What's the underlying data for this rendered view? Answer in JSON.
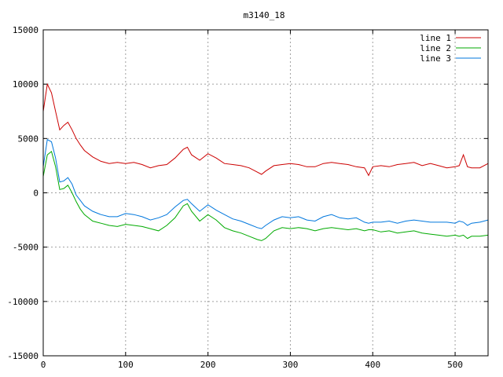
{
  "chart_data": {
    "type": "line",
    "title": "m3140_18",
    "xlabel": "",
    "ylabel": "",
    "xlim": [
      0,
      540
    ],
    "ylim": [
      -15000,
      15000
    ],
    "xticks": [
      0,
      100,
      200,
      300,
      400,
      500
    ],
    "yticks": [
      -15000,
      -10000,
      -5000,
      0,
      5000,
      10000,
      15000
    ],
    "grid": true,
    "legend_position": "top-right",
    "x": [
      0,
      5,
      10,
      15,
      20,
      25,
      30,
      35,
      40,
      45,
      50,
      60,
      70,
      80,
      90,
      100,
      110,
      120,
      130,
      140,
      150,
      160,
      170,
      175,
      180,
      190,
      200,
      210,
      220,
      230,
      240,
      250,
      260,
      265,
      270,
      280,
      290,
      300,
      310,
      320,
      330,
      340,
      350,
      360,
      370,
      380,
      390,
      395,
      400,
      410,
      420,
      430,
      440,
      450,
      460,
      470,
      480,
      490,
      500,
      505,
      510,
      515,
      520,
      530,
      540
    ],
    "series": [
      {
        "name": "line 1",
        "color": "#cc0000",
        "values": [
          7500,
          10000,
          9200,
          7500,
          5800,
          6200,
          6500,
          5800,
          5000,
          4400,
          3900,
          3300,
          2900,
          2700,
          2800,
          2700,
          2800,
          2600,
          2300,
          2500,
          2600,
          3200,
          4000,
          4200,
          3500,
          3000,
          3600,
          3200,
          2700,
          2600,
          2500,
          2300,
          1900,
          1700,
          2000,
          2500,
          2600,
          2700,
          2600,
          2400,
          2400,
          2700,
          2800,
          2700,
          2600,
          2400,
          2300,
          1600,
          2400,
          2500,
          2400,
          2600,
          2700,
          2800,
          2500,
          2700,
          2500,
          2300,
          2400,
          2500,
          3500,
          2400,
          2300,
          2300,
          2700
        ]
      },
      {
        "name": "line 2",
        "color": "#00aa00",
        "values": [
          1500,
          3500,
          3800,
          2400,
          300,
          400,
          700,
          0,
          -800,
          -1500,
          -2000,
          -2600,
          -2800,
          -3000,
          -3100,
          -2900,
          -3000,
          -3100,
          -3300,
          -3500,
          -3000,
          -2300,
          -1200,
          -1000,
          -1700,
          -2600,
          -2000,
          -2500,
          -3200,
          -3500,
          -3700,
          -4000,
          -4300,
          -4400,
          -4200,
          -3500,
          -3200,
          -3300,
          -3200,
          -3300,
          -3500,
          -3300,
          -3200,
          -3300,
          -3400,
          -3300,
          -3500,
          -3400,
          -3400,
          -3600,
          -3500,
          -3700,
          -3600,
          -3500,
          -3700,
          -3800,
          -3900,
          -4000,
          -3900,
          -4000,
          -3900,
          -4200,
          -4000,
          -4000,
          -3900
        ]
      },
      {
        "name": "line 3",
        "color": "#0077dd",
        "values": [
          2400,
          4900,
          4700,
          3200,
          1000,
          1100,
          1400,
          800,
          -200,
          -700,
          -1200,
          -1700,
          -2000,
          -2200,
          -2200,
          -1900,
          -2000,
          -2200,
          -2500,
          -2300,
          -2000,
          -1300,
          -700,
          -600,
          -1000,
          -1700,
          -1100,
          -1600,
          -2000,
          -2400,
          -2600,
          -2900,
          -3200,
          -3300,
          -3000,
          -2500,
          -2200,
          -2300,
          -2200,
          -2500,
          -2600,
          -2200,
          -2000,
          -2300,
          -2400,
          -2300,
          -2700,
          -2800,
          -2700,
          -2700,
          -2600,
          -2800,
          -2600,
          -2500,
          -2600,
          -2700,
          -2700,
          -2700,
          -2800,
          -2600,
          -2700,
          -3000,
          -2800,
          -2700,
          -2500
        ]
      }
    ]
  }
}
